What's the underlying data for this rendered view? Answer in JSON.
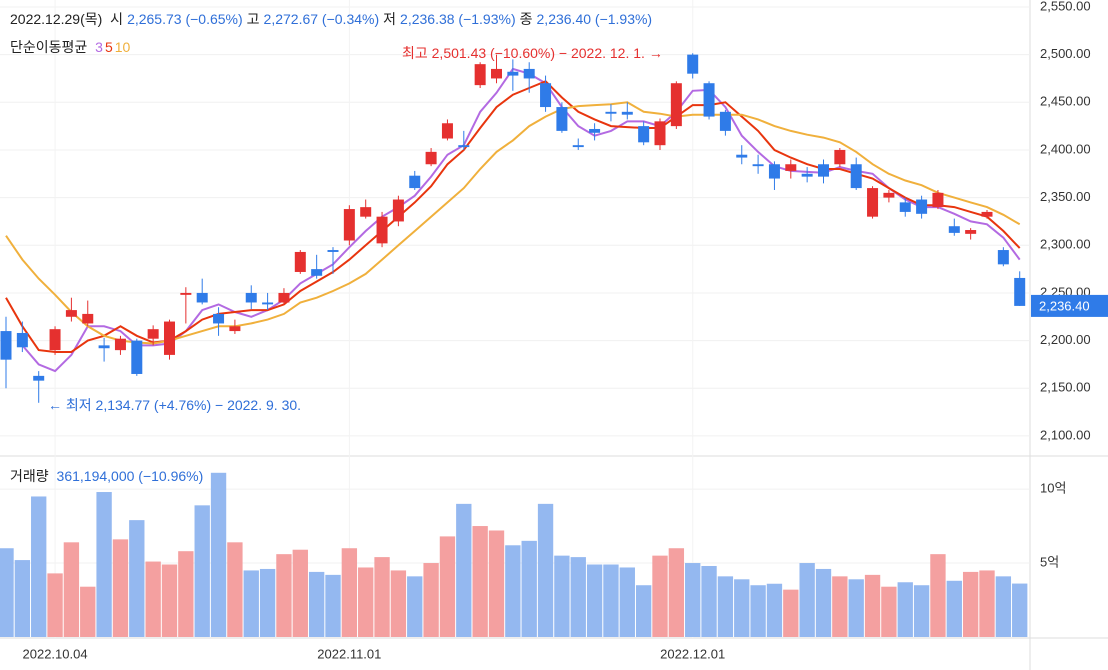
{
  "chart_data": {
    "type": "candlestick",
    "header": {
      "date": "2022.12.29(목)",
      "items": [
        {
          "label": "시",
          "value": "2,265.73 (−0.65%)"
        },
        {
          "label": "고",
          "value": "2,272.67 (−0.34%)"
        },
        {
          "label": "저",
          "value": "2,236.38 (−1.93%)"
        },
        {
          "label": "종",
          "value": "2,236.40 (−1.93%)"
        }
      ]
    },
    "legend_title": "단순이동평균",
    "annotations": [
      {
        "text": "최고 2,501.43 (−10.60%) − 2022. 12. 1. →",
        "color": "#e5302f"
      },
      {
        "text": "← 최저 2,134.77 (+4.76%) − 2022. 9. 30.",
        "color": "#2f6fd8"
      }
    ],
    "last_label": "2,236.40",
    "up_color": "#e5302f",
    "down_color": "#2f7be8",
    "categories": [
      null,
      null,
      null,
      "2022.10.04",
      null,
      null,
      null,
      null,
      null,
      null,
      null,
      null,
      null,
      null,
      null,
      null,
      null,
      null,
      null,
      null,
      null,
      "2022.11.01",
      null,
      null,
      null,
      null,
      null,
      null,
      null,
      null,
      null,
      null,
      null,
      null,
      null,
      null,
      null,
      null,
      null,
      null,
      null,
      null,
      "2022.12.01",
      null,
      null,
      null,
      null,
      null,
      null,
      null,
      null,
      null,
      null,
      null,
      null,
      null,
      null,
      null,
      null,
      null,
      null,
      null,
      null
    ],
    "open": [
      2210,
      2208,
      2163,
      2190,
      2225,
      2218,
      2195,
      2190,
      2200,
      2202,
      2185,
      2248,
      2250,
      2228,
      2210,
      2250,
      2240,
      2240,
      2272,
      2275,
      2295,
      2305,
      2330,
      2302,
      2325,
      2373,
      2385,
      2412,
      2405,
      2468,
      2475,
      2482,
      2485,
      2470,
      2445,
      2405,
      2422,
      2440,
      2440,
      2425,
      2405,
      2425,
      2500,
      2470,
      2440,
      2395,
      2385,
      2385,
      2378,
      2375,
      2385,
      2385,
      2385,
      2330,
      2350,
      2345,
      2348,
      2340,
      2320,
      2312,
      2330,
      2295,
      2265.73
    ],
    "high": [
      2225,
      2220,
      2168,
      2215,
      2245,
      2242,
      2203,
      2205,
      2202,
      2216,
      2222,
      2256,
      2265,
      2235,
      2222,
      2258,
      2250,
      2255,
      2295,
      2290,
      2298,
      2342,
      2348,
      2335,
      2352,
      2378,
      2402,
      2432,
      2420,
      2492,
      2500,
      2495,
      2492,
      2478,
      2450,
      2412,
      2428,
      2448,
      2450,
      2430,
      2433,
      2472,
      2501.43,
      2472,
      2442,
      2405,
      2395,
      2388,
      2390,
      2382,
      2390,
      2402,
      2392,
      2362,
      2358,
      2350,
      2352,
      2358,
      2328,
      2318,
      2337,
      2298,
      2272.67
    ],
    "low": [
      2150,
      2188,
      2134.77,
      2185,
      2220,
      2215,
      2178,
      2185,
      2163,
      2195,
      2180,
      2218,
      2238,
      2205,
      2207,
      2233,
      2232,
      2238,
      2270,
      2265,
      2270,
      2300,
      2328,
      2298,
      2320,
      2358,
      2383,
      2410,
      2400,
      2465,
      2470,
      2462,
      2460,
      2440,
      2418,
      2400,
      2410,
      2430,
      2432,
      2405,
      2400,
      2422,
      2475,
      2432,
      2415,
      2385,
      2375,
      2358,
      2370,
      2366,
      2365,
      2382,
      2358,
      2328,
      2345,
      2330,
      2328,
      2338,
      2310,
      2306,
      2328,
      2278,
      2236.38
    ],
    "close": [
      2180,
      2193,
      2158,
      2212,
      2232,
      2228,
      2192,
      2202,
      2165,
      2212,
      2220,
      2250,
      2240,
      2218,
      2215,
      2240,
      2238,
      2250,
      2293,
      2268,
      2293,
      2338,
      2340,
      2330,
      2348,
      2360,
      2398,
      2428,
      2403,
      2490,
      2485,
      2478,
      2475,
      2445,
      2420,
      2403,
      2418,
      2438,
      2437,
      2408,
      2430,
      2470,
      2480,
      2435,
      2420,
      2392,
      2383,
      2370,
      2385,
      2372,
      2372,
      2400,
      2360,
      2360,
      2355,
      2335,
      2333,
      2355,
      2313,
      2316,
      2335,
      2280,
      2236.4
    ],
    "series": [
      {
        "name": "3",
        "color": "#b36ae2",
        "values": [
          null,
          2195,
          2175,
          2168,
          2185,
          2215,
          2215,
          2210,
          2195,
          2195,
          2197,
          2210,
          2232,
          2238,
          2230,
          2225,
          2232,
          2243,
          2260,
          2270,
          2280,
          2298,
          2315,
          2330,
          2340,
          2352,
          2372,
          2395,
          2405,
          2440,
          2460,
          2485,
          2480,
          2470,
          2445,
          2425,
          2415,
          2420,
          2430,
          2430,
          2425,
          2440,
          2462,
          2463,
          2445,
          2415,
          2398,
          2383,
          2378,
          2377,
          2376,
          2382,
          2378,
          2375,
          2360,
          2348,
          2340,
          2340,
          2333,
          2325,
          2322,
          2308,
          2285
        ]
      },
      {
        "name": "5",
        "color": "#e8350e",
        "values": [
          2245,
          2215,
          2190,
          2188,
          2188,
          2200,
          2205,
          2215,
          2205,
          2198,
          2200,
          2210,
          2222,
          2228,
          2230,
          2232,
          2232,
          2238,
          2252,
          2262,
          2272,
          2285,
          2300,
          2315,
          2330,
          2345,
          2362,
          2385,
          2400,
          2423,
          2445,
          2458,
          2465,
          2472,
          2455,
          2440,
          2432,
          2425,
          2424,
          2423,
          2423,
          2435,
          2447,
          2447,
          2450,
          2435,
          2420,
          2400,
          2392,
          2385,
          2380,
          2380,
          2375,
          2370,
          2360,
          2350,
          2342,
          2342,
          2340,
          2335,
          2330,
          2315,
          2297
        ]
      },
      {
        "name": "10",
        "color": "#f0b03c",
        "values": [
          2310,
          2285,
          2265,
          2248,
          2230,
          2215,
          2205,
          2200,
          2198,
          2197,
          2200,
          2205,
          2210,
          2215,
          2215,
          2218,
          2222,
          2228,
          2240,
          2245,
          2252,
          2260,
          2270,
          2285,
          2300,
          2315,
          2330,
          2345,
          2360,
          2380,
          2398,
          2410,
          2425,
          2435,
          2443,
          2446,
          2447,
          2448,
          2450,
          2440,
          2438,
          2435,
          2437,
          2437,
          2437,
          2437,
          2432,
          2425,
          2420,
          2416,
          2413,
          2408,
          2398,
          2385,
          2375,
          2368,
          2363,
          2355,
          2350,
          2345,
          2340,
          2332,
          2322
        ]
      }
    ],
    "ylim": [
      2080,
      2557.3
    ],
    "yticks": [
      {
        "value": 2100,
        "label": "2,100.00"
      },
      {
        "value": 2150,
        "label": "2,150.00"
      },
      {
        "value": 2200,
        "label": "2,200.00"
      },
      {
        "value": 2250,
        "label": "2,250.00"
      },
      {
        "value": 2300,
        "label": "2,300.00"
      },
      {
        "value": 2350,
        "label": "2,350.00"
      },
      {
        "value": 2400,
        "label": "2,400.00"
      },
      {
        "value": 2450,
        "label": "2,450.00"
      },
      {
        "value": 2500,
        "label": "2,500.00"
      },
      {
        "value": 2550,
        "label": "2,550.00"
      }
    ],
    "grid": true,
    "volume": {
      "title": "거래량",
      "summary": "361,194,000 (−10.96%)",
      "up_color": "#f4a0a0",
      "down_color": "#94b8f0",
      "values": [
        6,
        5.2,
        9.5,
        4.3,
        6.4,
        3.4,
        9.8,
        6.6,
        7.9,
        5.1,
        4.9,
        5.8,
        8.9,
        11.1,
        6.4,
        4.5,
        4.6,
        5.6,
        5.9,
        4.4,
        4.2,
        6.0,
        4.7,
        5.4,
        4.5,
        4.1,
        5.0,
        6.8,
        9.0,
        7.5,
        7.2,
        6.2,
        6.5,
        9.0,
        5.5,
        5.4,
        4.9,
        4.9,
        4.7,
        3.5,
        5.5,
        6.0,
        5.0,
        4.8,
        4.1,
        3.9,
        3.5,
        3.6,
        3.2,
        5.0,
        4.6,
        4.1,
        3.9,
        4.2,
        3.4,
        3.7,
        3.5,
        5.6,
        3.8,
        4.4,
        4.5,
        4.1,
        3.61194
      ],
      "ylim": [
        0,
        12.1
      ],
      "yticks": [
        {
          "value": 5,
          "label": "5억"
        },
        {
          "value": 10,
          "label": "10억"
        }
      ]
    }
  }
}
